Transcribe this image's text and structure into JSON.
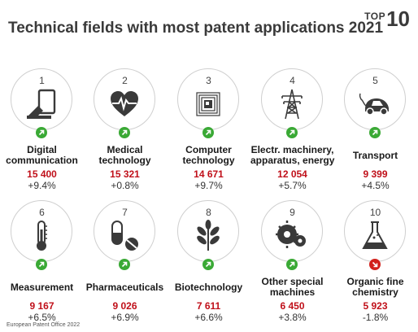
{
  "title": "Technical fields with most patent applications 2021",
  "badge": {
    "word": "TOP",
    "number": "10"
  },
  "colors": {
    "value": "#c0101a",
    "up": "#3aa935",
    "down": "#d2201b"
  },
  "fields": [
    {
      "rank": "1",
      "label_lines": [
        "Digital",
        "communication"
      ],
      "value": "15 400",
      "change": "+9.4%",
      "trend": "up",
      "icon": "tablet-icon"
    },
    {
      "rank": "2",
      "label_lines": [
        "Medical",
        "technology"
      ],
      "value": "15 321",
      "change": "+0.8%",
      "trend": "up",
      "icon": "heart-icon"
    },
    {
      "rank": "3",
      "label_lines": [
        "Computer",
        "technology"
      ],
      "value": "14 671",
      "change": "+9.7%",
      "trend": "up",
      "icon": "chip-icon"
    },
    {
      "rank": "4",
      "label_lines": [
        "Electr. machinery,",
        "apparatus, energy"
      ],
      "value": "12 054",
      "change": "+5.7%",
      "trend": "up",
      "icon": "pylon-icon"
    },
    {
      "rank": "5",
      "label_lines": [
        "Transport"
      ],
      "value": "9 399",
      "change": "+4.5%",
      "trend": "up",
      "icon": "car-icon"
    },
    {
      "rank": "6",
      "label_lines": [
        "Measurement"
      ],
      "value": "9 167",
      "change": "+6.5%",
      "trend": "up",
      "icon": "thermometer-icon"
    },
    {
      "rank": "7",
      "label_lines": [
        "Pharmaceuticals"
      ],
      "value": "9 026",
      "change": "+6.9%",
      "trend": "up",
      "icon": "pills-icon"
    },
    {
      "rank": "8",
      "label_lines": [
        "Biotechnology"
      ],
      "value": "7 611",
      "change": "+6.6%",
      "trend": "up",
      "icon": "plant-icon"
    },
    {
      "rank": "9",
      "label_lines": [
        "Other special",
        "machines"
      ],
      "value": "6 450",
      "change": "+3.8%",
      "trend": "up",
      "icon": "gears-icon"
    },
    {
      "rank": "10",
      "label_lines": [
        "Organic fine",
        "chemistry"
      ],
      "value": "5 923",
      "change": "-1.8%",
      "trend": "down",
      "icon": "flask-icon"
    }
  ],
  "footer": "European Patent Office 2022"
}
